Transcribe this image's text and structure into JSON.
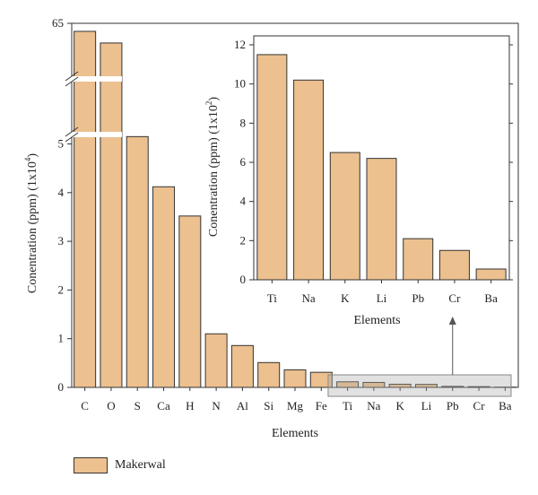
{
  "chart_data": [
    {
      "type": "bar",
      "role": "main",
      "categories": [
        "C",
        "O",
        "S",
        "Ca",
        "H",
        "N",
        "Al",
        "Si",
        "Mg",
        "Fe",
        "Ti",
        "Na",
        "K",
        "Li",
        "Pb",
        "Cr",
        "Ba"
      ],
      "series": [
        {
          "name": "Makerwal",
          "values": [
            60.5,
            54.0,
            5.15,
            4.12,
            3.52,
            1.1,
            0.86,
            0.51,
            0.36,
            0.31,
            0.115,
            0.102,
            0.065,
            0.062,
            0.021,
            0.015,
            0.0055
          ]
        }
      ],
      "xlabel": "Elements",
      "ylabel_prefix": "Conentration (ppm) (1x10",
      "ylabel_exp": "4",
      "ylabel_suffix": ")",
      "yticks": [
        "0",
        "1",
        "2",
        "3",
        "4",
        "5"
      ],
      "ytop_label": "65",
      "axis_break": true,
      "bar_color": "#ecc08f"
    },
    {
      "type": "bar",
      "role": "inset",
      "categories": [
        "Ti",
        "Na",
        "K",
        "Li",
        "Pb",
        "Cr",
        "Ba"
      ],
      "series": [
        {
          "name": "Makerwal",
          "values": [
            11.5,
            10.2,
            6.5,
            6.2,
            2.1,
            1.5,
            0.55
          ]
        }
      ],
      "xlabel": "Elements",
      "ylabel_prefix": "Conentration (ppm) (1x10",
      "ylabel_exp": "2",
      "ylabel_suffix": ")",
      "yticks": [
        "0",
        "2",
        "4",
        "6",
        "8",
        "10",
        "12"
      ],
      "ylim": [
        0,
        12
      ],
      "bar_color": "#ecc08f"
    }
  ],
  "legend": {
    "label": "Makerwal",
    "color": "#ecc08f"
  }
}
